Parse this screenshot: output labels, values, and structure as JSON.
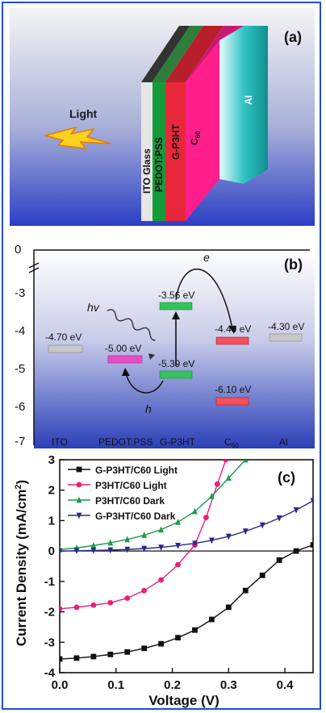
{
  "panel_a": {
    "label": "(a)",
    "light_label": "Light",
    "layers": [
      "ITO Glass",
      "PEDOT:PSS",
      "G-P3HT",
      "C60",
      "Al"
    ],
    "colors": {
      "ito": "#d9d9d9",
      "pedot": "#169b3a",
      "gp3ht": "#e8283a",
      "c60": "#ff1e8c",
      "al": "#1fb8b8"
    }
  },
  "panel_b": {
    "label": "(b)",
    "axis_top": "0",
    "y_ticks": [
      "-3",
      "-4",
      "-5",
      "-6",
      "-7"
    ],
    "materials": [
      "ITO",
      "PEDOT:PSS",
      "G-P3HT",
      "C60",
      "Al"
    ],
    "levels": [
      {
        "material": "ITO",
        "energy": "-4.70 eV",
        "value": -4.7,
        "color": "#b0b0b0"
      },
      {
        "material": "PEDOT:PSS",
        "energy": "-5.00 eV",
        "value": -5.0,
        "color": "#e020b0"
      },
      {
        "material": "G-P3HT",
        "energy": "-3.56 eV",
        "value": -3.56,
        "color": "#22b040"
      },
      {
        "material": "G-P3HT",
        "energy": "-5.39 eV",
        "value": -5.39,
        "color": "#22b040"
      },
      {
        "material": "C60",
        "energy": "-4.40 eV",
        "value": -4.4,
        "color": "#f03040"
      },
      {
        "material": "C60",
        "energy": "-6.10 eV",
        "value": -6.1,
        "color": "#f03040"
      },
      {
        "material": "Al",
        "energy": "-4.30 eV",
        "value": -4.3,
        "color": "#b0b0b0"
      }
    ],
    "labels": {
      "hv": "hv",
      "e": "e",
      "h": "h"
    }
  },
  "chart_data": {
    "type": "line",
    "panel_label": "(c)",
    "xlabel": "Voltage (V)",
    "ylabel": "Current Density (mA/cm²)",
    "xlim": [
      0.0,
      0.45
    ],
    "ylim": [
      -4,
      3
    ],
    "x_ticks": [
      "0.0",
      "0.1",
      "0.2",
      "0.3",
      "0.4"
    ],
    "y_ticks": [
      "-4",
      "-3",
      "-2",
      "-1",
      "0",
      "1",
      "2",
      "3"
    ],
    "legend_position": "top-left",
    "series": [
      {
        "name": "G-P3HT/C60 Light",
        "color": "#111111",
        "marker": "square",
        "x": [
          0.0,
          0.03,
          0.06,
          0.09,
          0.12,
          0.15,
          0.18,
          0.21,
          0.24,
          0.27,
          0.3,
          0.33,
          0.36,
          0.39,
          0.42,
          0.45
        ],
        "y": [
          -3.55,
          -3.52,
          -3.47,
          -3.4,
          -3.32,
          -3.2,
          -3.05,
          -2.85,
          -2.6,
          -2.25,
          -1.85,
          -1.3,
          -0.8,
          -0.3,
          0.0,
          0.2
        ]
      },
      {
        "name": "P3HT/C60 Light",
        "color": "#e8207a",
        "marker": "circle",
        "x": [
          0.0,
          0.03,
          0.06,
          0.09,
          0.12,
          0.15,
          0.18,
          0.21,
          0.24,
          0.26,
          0.28,
          0.295
        ],
        "y": [
          -1.9,
          -1.85,
          -1.78,
          -1.7,
          -1.55,
          -1.3,
          -0.95,
          -0.45,
          0.2,
          1.1,
          2.2,
          3.0
        ]
      },
      {
        "name": "P3HT/C60 Dark",
        "color": "#1a9a50",
        "marker": "triangle-up",
        "x": [
          0.0,
          0.03,
          0.06,
          0.09,
          0.12,
          0.15,
          0.18,
          0.21,
          0.24,
          0.27,
          0.3,
          0.33
        ],
        "y": [
          0.05,
          0.1,
          0.18,
          0.27,
          0.38,
          0.52,
          0.7,
          0.95,
          1.3,
          1.8,
          2.4,
          3.0
        ]
      },
      {
        "name": "G-P3HT/C60 Dark",
        "color": "#2a2a8a",
        "marker": "triangle-down",
        "x": [
          0.0,
          0.03,
          0.06,
          0.09,
          0.12,
          0.15,
          0.18,
          0.21,
          0.24,
          0.27,
          0.3,
          0.33,
          0.36,
          0.39,
          0.42,
          0.45
        ],
        "y": [
          0.0,
          0.01,
          0.02,
          0.03,
          0.05,
          0.08,
          0.12,
          0.18,
          0.25,
          0.35,
          0.48,
          0.65,
          0.85,
          1.08,
          1.35,
          1.65
        ]
      }
    ]
  }
}
